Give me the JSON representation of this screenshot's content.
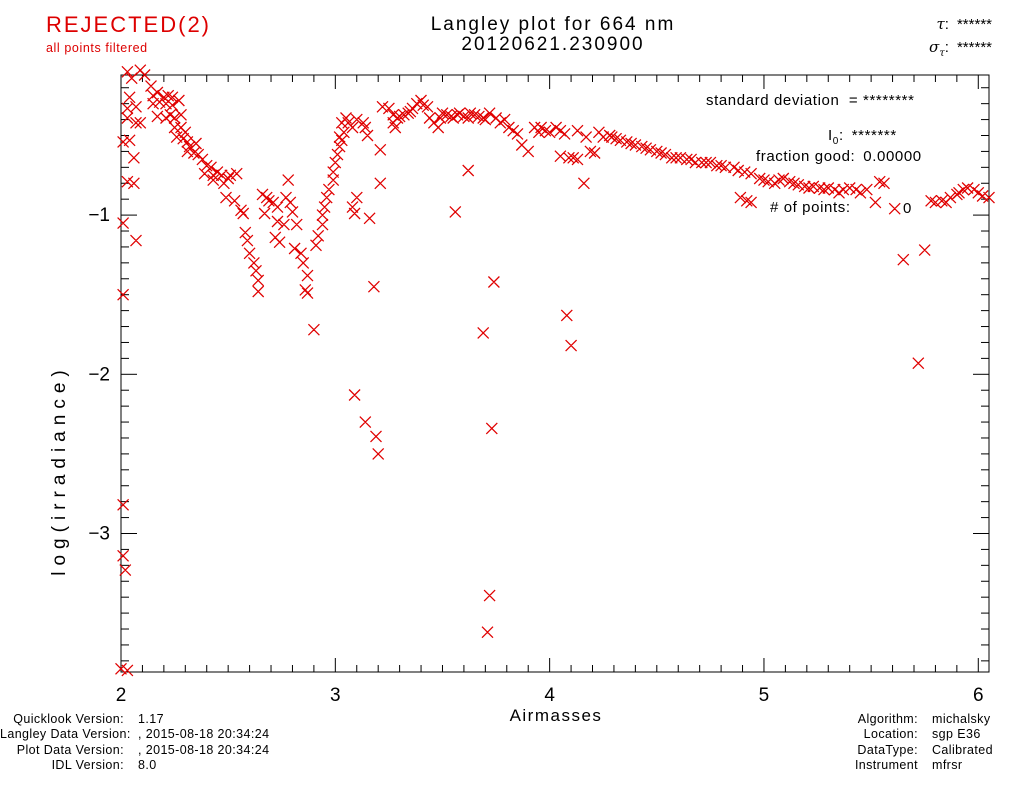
{
  "status": {
    "text": "REJECTED(2)",
    "subtext": "all points filtered",
    "color": "#dd0000"
  },
  "title": {
    "line1": "Langley plot for 664 nm",
    "line2": "20120621.230900"
  },
  "stats": {
    "tau_symbol": "τ",
    "tau_colon": ":",
    "tau_value": "******",
    "sigma_symbol": "σ",
    "sigma_sub": "τ",
    "sigma_colon": ":",
    "sigma_value": "******",
    "std_text": "standard deviation  = ********",
    "i0_base": "I",
    "i0_sub": "0",
    "i0_colon": ":",
    "i0_value": "*******",
    "fraction_label": "fraction good:",
    "fraction_value": "0.00000",
    "points_label": "# of points:",
    "points_value": "0"
  },
  "footer_left": {
    "rows": [
      {
        "label": "Quicklook Version:",
        "value": "1.17"
      },
      {
        "label": "Langley Data Version:",
        "value": ", 2015-08-18 20:34:24"
      },
      {
        "label": "Plot Data Version:",
        "value": ", 2015-08-18 20:34:24"
      },
      {
        "label": "IDL Version:",
        "value": "8.0"
      }
    ]
  },
  "footer_right": {
    "rows": [
      {
        "label": "Algorithm:",
        "value": "michalsky"
      },
      {
        "label": "Location:",
        "value": "sgp E36"
      },
      {
        "label": "DataType:",
        "value": "Calibrated"
      },
      {
        "label": "Instrument",
        "value": "mfrsr"
      }
    ]
  },
  "chart_data": {
    "type": "scatter",
    "title": "Langley plot for 664 nm 20120621.230900",
    "xlabel": "Airmasses",
    "ylabel": "log(irradiance)",
    "x_ticks": [
      2,
      3,
      4,
      5,
      6
    ],
    "y_ticks": [
      -1,
      -2,
      -3
    ],
    "x_range": [
      2.0,
      6.05
    ],
    "y_range": [
      -3.87,
      -0.12
    ],
    "minor_tick_step": 0.1,
    "grid": false,
    "legend": "none",
    "marker": "x",
    "marker_color": "#e00000",
    "frame_color": "#000000",
    "points": [
      [
        2.03,
        -0.1
      ],
      [
        2.09,
        -0.09
      ],
      [
        2.11,
        -0.12
      ],
      [
        2.05,
        -0.14
      ],
      [
        2.14,
        -0.19
      ],
      [
        2.15,
        -0.25
      ],
      [
        2.17,
        -0.23
      ],
      [
        2.2,
        -0.26
      ],
      [
        2.22,
        -0.25
      ],
      [
        2.24,
        -0.26
      ],
      [
        2.18,
        -0.29
      ],
      [
        2.15,
        -0.3
      ],
      [
        2.21,
        -0.3
      ],
      [
        2.24,
        -0.31
      ],
      [
        2.27,
        -0.28
      ],
      [
        2.04,
        -0.26
      ],
      [
        2.03,
        -0.33
      ],
      [
        2.07,
        -0.32
      ],
      [
        2.17,
        -0.38
      ],
      [
        2.21,
        -0.39
      ],
      [
        2.23,
        -0.37
      ],
      [
        2.25,
        -0.39
      ],
      [
        2.28,
        -0.37
      ],
      [
        2.03,
        -0.39
      ],
      [
        2.07,
        -0.42
      ],
      [
        2.09,
        -0.42
      ],
      [
        2.25,
        -0.45
      ],
      [
        2.28,
        -0.45
      ],
      [
        2.3,
        -0.48
      ],
      [
        2.26,
        -0.51
      ],
      [
        2.29,
        -0.52
      ],
      [
        2.31,
        -0.54
      ],
      [
        2.32,
        -0.57
      ],
      [
        2.35,
        -0.55
      ],
      [
        2.31,
        -0.6
      ],
      [
        2.34,
        -0.61
      ],
      [
        2.36,
        -0.62
      ],
      [
        2.01,
        -0.54
      ],
      [
        2.04,
        -0.53
      ],
      [
        2.06,
        -0.64
      ],
      [
        2.38,
        -0.65
      ],
      [
        2.4,
        -0.69
      ],
      [
        2.42,
        -0.7
      ],
      [
        2.39,
        -0.74
      ],
      [
        2.43,
        -0.75
      ],
      [
        2.45,
        -0.73
      ],
      [
        2.47,
        -0.75
      ],
      [
        2.5,
        -0.77
      ],
      [
        2.48,
        -0.8
      ],
      [
        2.43,
        -0.78
      ],
      [
        2.03,
        -0.79
      ],
      [
        2.06,
        -0.8
      ],
      [
        2.01,
        -1.05
      ],
      [
        2.07,
        -1.16
      ],
      [
        2.01,
        -1.5
      ],
      [
        2.49,
        -0.89
      ],
      [
        2.51,
        -0.75
      ],
      [
        2.54,
        -0.74
      ],
      [
        2.53,
        -0.91
      ],
      [
        2.56,
        -0.97
      ],
      [
        2.57,
        -0.99
      ],
      [
        2.58,
        -1.11
      ],
      [
        2.59,
        -1.16
      ],
      [
        2.6,
        -1.24
      ],
      [
        2.62,
        -1.3
      ],
      [
        2.63,
        -1.35
      ],
      [
        2.64,
        -1.41
      ],
      [
        2.64,
        -1.48
      ],
      [
        2.66,
        -0.87
      ],
      [
        2.68,
        -0.89
      ],
      [
        2.69,
        -0.91
      ],
      [
        2.71,
        -0.92
      ],
      [
        2.73,
        -0.95
      ],
      [
        2.67,
        -0.99
      ],
      [
        2.78,
        -0.78
      ],
      [
        2.77,
        -0.89
      ],
      [
        2.79,
        -0.92
      ],
      [
        2.8,
        -0.98
      ],
      [
        2.73,
        -1.04
      ],
      [
        2.76,
        -1.06
      ],
      [
        2.72,
        -1.14
      ],
      [
        2.74,
        -1.17
      ],
      [
        2.82,
        -1.06
      ],
      [
        2.81,
        -1.21
      ],
      [
        2.84,
        -1.24
      ],
      [
        2.85,
        -1.3
      ],
      [
        2.87,
        -1.38
      ],
      [
        2.86,
        -1.47
      ],
      [
        2.87,
        -1.49
      ],
      [
        2.9,
        -1.72
      ],
      [
        2.91,
        -1.19
      ],
      [
        2.92,
        -1.13
      ],
      [
        2.94,
        -1.06
      ],
      [
        2.94,
        -1.0
      ],
      [
        2.95,
        -0.95
      ],
      [
        2.96,
        -0.89
      ],
      [
        2.97,
        -0.84
      ],
      [
        2.99,
        -0.78
      ],
      [
        2.99,
        -0.73
      ],
      [
        3.0,
        -0.67
      ],
      [
        3.01,
        -0.62
      ],
      [
        3.02,
        -0.57
      ],
      [
        3.03,
        -0.53
      ],
      [
        3.03,
        -0.42
      ],
      [
        3.05,
        -0.39
      ],
      [
        3.06,
        -0.42
      ],
      [
        3.08,
        -0.45
      ],
      [
        3.1,
        -0.4
      ],
      [
        3.13,
        -0.42
      ],
      [
        3.14,
        -0.45
      ],
      [
        3.15,
        -0.5
      ],
      [
        3.04,
        -0.48
      ],
      [
        3.02,
        -0.51
      ],
      [
        3.08,
        -0.95
      ],
      [
        3.09,
        -0.99
      ],
      [
        3.1,
        -0.89
      ],
      [
        3.16,
        -1.02
      ],
      [
        3.21,
        -0.59
      ],
      [
        3.21,
        -0.8
      ],
      [
        3.09,
        -2.13
      ],
      [
        3.14,
        -2.3
      ],
      [
        3.19,
        -2.39
      ],
      [
        3.2,
        -2.5
      ],
      [
        3.18,
        -1.45
      ],
      [
        3.22,
        -0.32
      ],
      [
        3.25,
        -0.33
      ],
      [
        3.27,
        -0.37
      ],
      [
        3.29,
        -0.39
      ],
      [
        3.3,
        -0.38
      ],
      [
        3.32,
        -0.37
      ],
      [
        3.34,
        -0.36
      ],
      [
        3.35,
        -0.35
      ],
      [
        3.36,
        -0.33
      ],
      [
        3.38,
        -0.3
      ],
      [
        3.4,
        -0.28
      ],
      [
        3.41,
        -0.31
      ],
      [
        3.43,
        -0.32
      ],
      [
        3.27,
        -0.42
      ],
      [
        3.28,
        -0.45
      ],
      [
        3.44,
        -0.39
      ],
      [
        3.46,
        -0.42
      ],
      [
        3.48,
        -0.45
      ],
      [
        3.49,
        -0.39
      ],
      [
        3.5,
        -0.36
      ],
      [
        3.52,
        -0.37
      ],
      [
        3.54,
        -0.38
      ],
      [
        3.55,
        -0.39
      ],
      [
        3.57,
        -0.37
      ],
      [
        3.58,
        -0.36
      ],
      [
        3.6,
        -0.38
      ],
      [
        3.62,
        -0.39
      ],
      [
        3.63,
        -0.36
      ],
      [
        3.65,
        -0.37
      ],
      [
        3.67,
        -0.38
      ],
      [
        3.69,
        -0.39
      ],
      [
        3.7,
        -0.4
      ],
      [
        3.72,
        -0.36
      ],
      [
        3.75,
        -0.39
      ],
      [
        3.77,
        -0.42
      ],
      [
        3.79,
        -0.4
      ],
      [
        3.81,
        -0.45
      ],
      [
        3.83,
        -0.47
      ],
      [
        3.85,
        -0.49
      ],
      [
        3.56,
        -0.98
      ],
      [
        3.62,
        -0.72
      ],
      [
        3.69,
        -1.74
      ],
      [
        3.73,
        -2.34
      ],
      [
        3.74,
        -1.42
      ],
      [
        3.72,
        -3.39
      ],
      [
        3.71,
        -3.62
      ],
      [
        3.87,
        -0.56
      ],
      [
        3.9,
        -0.6
      ],
      [
        3.93,
        -0.45
      ],
      [
        3.95,
        -0.48
      ],
      [
        3.96,
        -0.45
      ],
      [
        3.98,
        -0.47
      ],
      [
        4.0,
        -0.48
      ],
      [
        4.03,
        -0.45
      ],
      [
        4.05,
        -0.47
      ],
      [
        4.07,
        -0.49
      ],
      [
        4.05,
        -0.63
      ],
      [
        4.09,
        -0.64
      ],
      [
        4.11,
        -0.64
      ],
      [
        4.13,
        -0.65
      ],
      [
        4.13,
        -0.47
      ],
      [
        4.17,
        -0.51
      ],
      [
        4.16,
        -0.8
      ],
      [
        4.19,
        -0.6
      ],
      [
        4.21,
        -0.61
      ],
      [
        4.08,
        -1.63
      ],
      [
        4.1,
        -1.82
      ],
      [
        4.23,
        -0.48
      ],
      [
        4.25,
        -0.51
      ],
      [
        4.28,
        -0.5
      ],
      [
        4.29,
        -0.51
      ],
      [
        4.31,
        -0.52
      ],
      [
        4.33,
        -0.53
      ],
      [
        4.36,
        -0.54
      ],
      [
        4.38,
        -0.55
      ],
      [
        4.4,
        -0.56
      ],
      [
        4.43,
        -0.57
      ],
      [
        4.45,
        -0.58
      ],
      [
        4.47,
        -0.59
      ],
      [
        4.5,
        -0.6
      ],
      [
        4.52,
        -0.61
      ],
      [
        4.54,
        -0.62
      ],
      [
        4.57,
        -0.64
      ],
      [
        4.59,
        -0.64
      ],
      [
        4.61,
        -0.64
      ],
      [
        4.64,
        -0.65
      ],
      [
        4.66,
        -0.65
      ],
      [
        4.68,
        -0.67
      ],
      [
        4.71,
        -0.67
      ],
      [
        4.73,
        -0.67
      ],
      [
        4.75,
        -0.67
      ],
      [
        4.78,
        -0.69
      ],
      [
        4.8,
        -0.69
      ],
      [
        4.82,
        -0.7
      ],
      [
        4.86,
        -0.7
      ],
      [
        4.88,
        -0.72
      ],
      [
        4.91,
        -0.73
      ],
      [
        4.94,
        -0.74
      ],
      [
        4.98,
        -0.77
      ],
      [
        5.0,
        -0.78
      ],
      [
        5.02,
        -0.79
      ],
      [
        5.05,
        -0.8
      ],
      [
        5.07,
        -0.78
      ],
      [
        5.09,
        -0.77
      ],
      [
        5.12,
        -0.79
      ],
      [
        5.14,
        -0.8
      ],
      [
        5.16,
        -0.81
      ],
      [
        5.19,
        -0.82
      ],
      [
        5.21,
        -0.83
      ],
      [
        5.23,
        -0.82
      ],
      [
        5.26,
        -0.83
      ],
      [
        5.28,
        -0.84
      ],
      [
        5.3,
        -0.83
      ],
      [
        5.33,
        -0.84
      ],
      [
        5.35,
        -0.86
      ],
      [
        5.37,
        -0.84
      ],
      [
        5.4,
        -0.83
      ],
      [
        5.43,
        -0.84
      ],
      [
        5.45,
        -0.86
      ],
      [
        5.48,
        -0.84
      ],
      [
        5.54,
        -0.79
      ],
      [
        5.56,
        -0.8
      ],
      [
        4.89,
        -0.89
      ],
      [
        4.92,
        -0.91
      ],
      [
        4.94,
        -0.92
      ],
      [
        5.52,
        -0.92
      ],
      [
        5.61,
        -0.96
      ],
      [
        5.65,
        -1.28
      ],
      [
        5.75,
        -1.22
      ],
      [
        5.72,
        -1.93
      ],
      [
        5.78,
        -0.91
      ],
      [
        5.8,
        -0.92
      ],
      [
        5.83,
        -0.91
      ],
      [
        5.85,
        -0.92
      ],
      [
        5.87,
        -0.89
      ],
      [
        5.9,
        -0.87
      ],
      [
        5.91,
        -0.86
      ],
      [
        5.93,
        -0.84
      ],
      [
        5.95,
        -0.83
      ],
      [
        5.98,
        -0.84
      ],
      [
        6.0,
        -0.86
      ],
      [
        6.02,
        -0.88
      ],
      [
        6.05,
        -0.89
      ],
      [
        2.01,
        -2.82
      ],
      [
        2.01,
        -3.14
      ],
      [
        2.02,
        -3.23
      ],
      [
        2.0,
        -3.85
      ],
      [
        2.03,
        -3.86
      ]
    ]
  }
}
